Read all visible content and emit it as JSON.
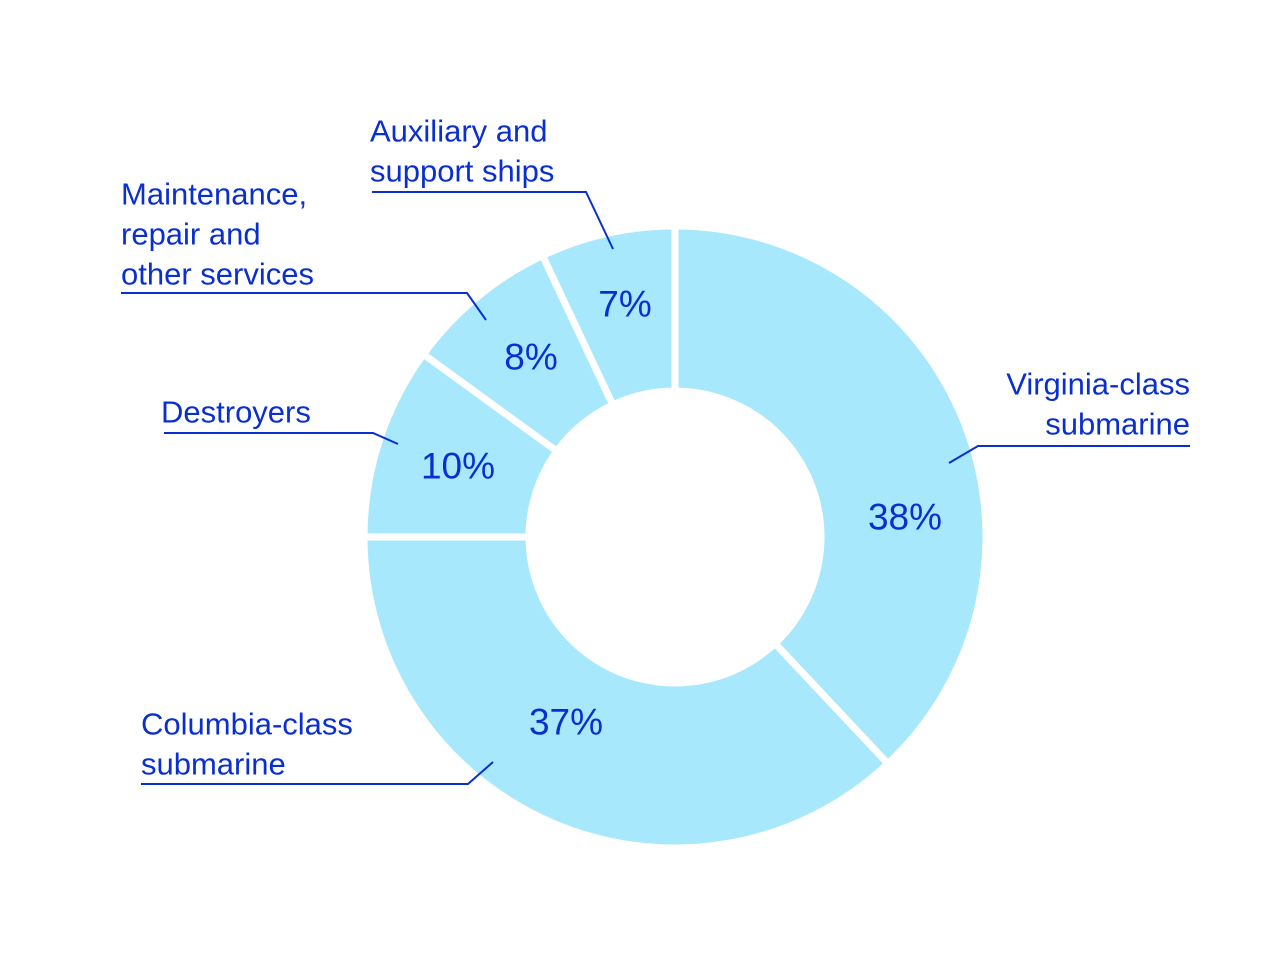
{
  "chart_data": {
    "type": "pie",
    "donut": true,
    "colors": {
      "slice": "#a8e8fd",
      "separator": "#ffffff",
      "text": "#0a2fd1",
      "leader": "#0a2fd1"
    },
    "slices": [
      {
        "name_lines": [
          "Virginia-class",
          "submarine"
        ],
        "value": 38,
        "value_label": "38%"
      },
      {
        "name_lines": [
          "Columbia-class",
          "submarine"
        ],
        "value": 37,
        "value_label": "37%"
      },
      {
        "name_lines": [
          "Destroyers"
        ],
        "value": 10,
        "value_label": "10%"
      },
      {
        "name_lines": [
          "Maintenance,",
          "repair and",
          "other services"
        ],
        "value": 8,
        "value_label": "8%"
      },
      {
        "name_lines": [
          "Auxiliary and",
          "support ships"
        ],
        "value": 7,
        "value_label": "7%"
      }
    ]
  }
}
